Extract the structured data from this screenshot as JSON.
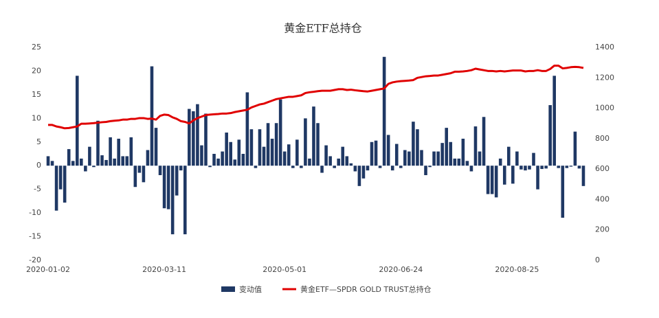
{
  "chart_data": {
    "type": "bar-line",
    "title": "黄金ETF总持仓",
    "categories": [
      "2020-01-02",
      null,
      null,
      null,
      null,
      null,
      null,
      null,
      null,
      null,
      null,
      null,
      null,
      null,
      null,
      null,
      null,
      null,
      null,
      null,
      null,
      null,
      null,
      null,
      null,
      null,
      null,
      null,
      "2020-03-11",
      null,
      null,
      null,
      null,
      null,
      null,
      null,
      null,
      null,
      null,
      null,
      null,
      null,
      null,
      null,
      null,
      null,
      null,
      null,
      null,
      null,
      null,
      null,
      null,
      null,
      null,
      null,
      null,
      "2020-05-01",
      null,
      null,
      null,
      null,
      null,
      null,
      null,
      null,
      null,
      null,
      null,
      null,
      null,
      null,
      null,
      null,
      null,
      null,
      null,
      null,
      null,
      null,
      null,
      null,
      null,
      null,
      null,
      "2020-06-24",
      null,
      null,
      null,
      null,
      null,
      null,
      null,
      null,
      null,
      null,
      null,
      null,
      null,
      null,
      null,
      null,
      null,
      null,
      null,
      null,
      null,
      null,
      null,
      null,
      null,
      null,
      null,
      "2020-08-25",
      null,
      null,
      null,
      null,
      null,
      null,
      null,
      null,
      null,
      null,
      null,
      null,
      null,
      null,
      null,
      null
    ],
    "series": [
      {
        "name": "变动值",
        "color": "#1f3864",
        "kind": "bar",
        "values": [
          2,
          1,
          -9.5,
          -5,
          -7.8,
          3.5,
          1,
          19,
          1.5,
          -1.2,
          4,
          -0.3,
          9.5,
          2.2,
          1.2,
          6,
          1.5,
          5.7,
          2,
          2,
          6,
          -4.5,
          -1.5,
          -3.5,
          3.3,
          21,
          8,
          -2,
          -9,
          -9.2,
          -14.5,
          -6.3,
          -1,
          -14.5,
          12,
          11.5,
          13,
          4.3,
          11,
          -0.3,
          2.5,
          1.5,
          3,
          7,
          5,
          1.3,
          5.5,
          2.5,
          15.5,
          7.7,
          -0.5,
          7.7,
          4,
          9,
          5.7,
          9,
          14,
          3,
          4.5,
          -0.5,
          5.5,
          -0.5,
          10,
          1.5,
          12.5,
          9,
          -1.5,
          4.3,
          2,
          -0.5,
          1.5,
          4,
          2,
          0.5,
          -1.2,
          -4.3,
          -2.7,
          -1,
          5,
          5.3,
          -0.5,
          23,
          6.5,
          -1,
          4.6,
          -0.5,
          3.3,
          3,
          9.3,
          7.7,
          3.3,
          -2,
          -0.3,
          3,
          3,
          4.8,
          8,
          5,
          1.5,
          1.5,
          5.7,
          1,
          -1.2,
          8.3,
          3,
          10.3,
          -6,
          -6,
          -6.7,
          1.5,
          -4,
          4,
          -3.8,
          3,
          -0.8,
          -1,
          -0.8,
          2.7,
          -5,
          -0.7,
          -0.6,
          12.8,
          19,
          -0.5,
          -11,
          -0.5,
          -0.2,
          7.2,
          -0.6,
          -4.3
        ]
      },
      {
        "name": "黄金ETF—SPDR GOLD TRUST总持仓",
        "color": "#e00000",
        "kind": "line",
        "axis": "y2",
        "values": [
          890,
          890,
          880,
          875,
          868,
          870,
          875,
          880,
          898,
          898,
          900,
          902,
          905,
          908,
          910,
          915,
          918,
          920,
          925,
          925,
          930,
          930,
          935,
          935,
          930,
          932,
          925,
          950,
          958,
          955,
          940,
          930,
          915,
          910,
          900,
          920,
          935,
          945,
          955,
          958,
          960,
          962,
          965,
          965,
          968,
          975,
          980,
          985,
          990,
          1005,
          1015,
          1025,
          1030,
          1040,
          1050,
          1060,
          1065,
          1070,
          1075,
          1075,
          1080,
          1085,
          1100,
          1105,
          1108,
          1112,
          1115,
          1115,
          1115,
          1120,
          1125,
          1125,
          1120,
          1122,
          1118,
          1115,
          1112,
          1110,
          1115,
          1120,
          1125,
          1130,
          1160,
          1170,
          1175,
          1178,
          1180,
          1182,
          1185,
          1200,
          1205,
          1210,
          1212,
          1215,
          1215,
          1220,
          1225,
          1230,
          1240,
          1240,
          1242,
          1245,
          1250,
          1260,
          1255,
          1250,
          1245,
          1245,
          1242,
          1245,
          1242,
          1245,
          1248,
          1248,
          1248,
          1242,
          1245,
          1245,
          1250,
          1245,
          1245,
          1258,
          1280,
          1280,
          1262,
          1265,
          1270,
          1272,
          1270,
          1265
        ]
      }
    ],
    "ylim": [
      -20,
      25
    ],
    "yticks": [
      -20,
      -15,
      -10,
      -5,
      0,
      5,
      10,
      15,
      20,
      25
    ],
    "y2lim": [
      0,
      1400
    ],
    "y2ticks": [
      0,
      200,
      400,
      600,
      800,
      1000,
      1200,
      1400
    ],
    "legend": "bottom"
  }
}
